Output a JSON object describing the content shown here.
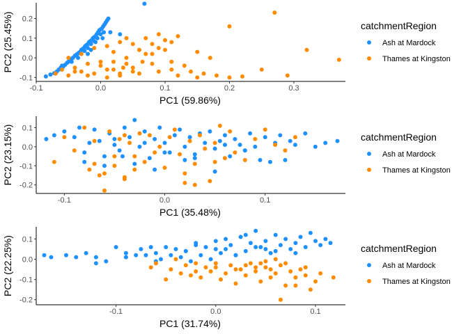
{
  "colors": {
    "ash": "#1e90ff",
    "thames": "#ff8c00",
    "axis": "#000000",
    "tick_text": "#4d4d4d"
  },
  "chart_data": [
    {
      "type": "scatter",
      "title": "",
      "xlabel": "PC1 (59.86%)",
      "ylabel": "PC2 (25.45%)",
      "xlim": [
        -0.1,
        0.38
      ],
      "ylim": [
        -0.12,
        0.28
      ],
      "xticks": [
        -0.1,
        0.0,
        0.1,
        0.2,
        0.3
      ],
      "xtick_labels": [
        "-0.1",
        "0.0",
        "0.1",
        "0.2",
        "0.3"
      ],
      "yticks": [
        -0.1,
        0.0,
        0.1,
        0.2
      ],
      "ytick_labels": [
        "-0.1",
        "0.0",
        "0.1",
        "0.2"
      ],
      "grid": false,
      "legend": {
        "title": "catchmentRegion",
        "position": "right",
        "entries": [
          "Ash at Mardock",
          "Thames at Kingston"
        ]
      },
      "series": [
        {
          "name": "Ash at Mardock",
          "color": "#1e90ff",
          "x": [
            -0.085,
            -0.078,
            -0.072,
            -0.068,
            -0.065,
            -0.062,
            -0.058,
            -0.055,
            -0.052,
            -0.05,
            -0.048,
            -0.045,
            -0.043,
            -0.04,
            -0.038,
            -0.036,
            -0.034,
            -0.032,
            -0.03,
            -0.028,
            -0.026,
            -0.024,
            -0.022,
            -0.02,
            -0.018,
            -0.016,
            -0.014,
            -0.012,
            -0.01,
            -0.008,
            -0.006,
            -0.004,
            -0.002,
            0.0,
            0.002,
            0.004,
            0.006,
            0.008,
            0.01,
            0.012,
            -0.03,
            -0.025,
            -0.02,
            -0.015,
            -0.01,
            -0.005,
            0.0,
            0.005,
            -0.035,
            -0.015,
            0.015,
            0.03,
            0.068,
            -0.06,
            -0.045,
            -0.02,
            -0.008,
            0.003
          ],
          "y": [
            -0.095,
            -0.085,
            -0.078,
            -0.07,
            -0.06,
            -0.05,
            -0.045,
            -0.035,
            -0.025,
            -0.02,
            -0.01,
            -0.005,
            0.0,
            0.01,
            0.015,
            0.02,
            0.025,
            0.03,
            0.04,
            0.045,
            0.05,
            0.06,
            0.065,
            0.07,
            0.08,
            0.085,
            0.09,
            0.1,
            0.105,
            0.11,
            0.12,
            0.13,
            0.14,
            0.145,
            0.15,
            0.16,
            0.17,
            0.18,
            0.19,
            0.2,
            0.02,
            0.035,
            0.05,
            0.07,
            0.085,
            0.1,
            0.12,
            0.13,
            0.0,
            0.04,
            0.13,
            0.12,
            0.275,
            -0.04,
            -0.02,
            0.02,
            0.08,
            0.1
          ]
        },
        {
          "name": "Thames at Kingston",
          "color": "#ff8c00",
          "x": [
            -0.07,
            -0.06,
            -0.05,
            -0.04,
            -0.03,
            -0.02,
            -0.01,
            0.0,
            0.01,
            0.02,
            0.03,
            0.04,
            0.05,
            0.06,
            0.07,
            0.08,
            0.09,
            0.1,
            0.11,
            0.12,
            0.13,
            0.14,
            0.15,
            0.16,
            0.18,
            0.2,
            0.22,
            0.25,
            0.27,
            0.29,
            0.32,
            0.37,
            -0.05,
            -0.03,
            -0.01,
            0.01,
            0.03,
            0.05,
            0.07,
            0.09,
            0.11,
            0.0,
            0.02,
            0.04,
            0.06,
            0.08,
            0.1,
            0.12,
            0.2,
            0.09,
            0.04,
            0.06,
            0.08,
            0.11,
            0.15,
            0.17,
            0.01,
            0.02,
            0.03,
            0.05,
            -0.04,
            -0.02,
            0.035,
            0.065
          ],
          "y": [
            -0.08,
            -0.06,
            -0.09,
            -0.05,
            -0.07,
            -0.03,
            -0.08,
            -0.04,
            -0.06,
            -0.02,
            -0.09,
            0.0,
            -0.05,
            -0.08,
            0.02,
            -0.03,
            -0.07,
            0.04,
            -0.06,
            -0.09,
            -0.04,
            -0.07,
            -0.1,
            -0.08,
            -0.09,
            -0.1,
            -0.095,
            -0.06,
            0.23,
            -0.09,
            0.04,
            -0.01,
            0.0,
            0.02,
            0.05,
            0.06,
            0.08,
            0.07,
            0.1,
            0.05,
            0.08,
            -0.02,
            0.03,
            -0.03,
            0.04,
            0.07,
            0.09,
            0.11,
            0.16,
            0.12,
            0.1,
            0.04,
            0.02,
            -0.02,
            0.03,
            0.0,
            -0.1,
            -0.06,
            -0.08,
            -0.07,
            -0.07,
            -0.09,
            -0.05,
            -0.02
          ]
        }
      ]
    },
    {
      "type": "scatter",
      "title": "",
      "xlabel": "PC1 (35.48%)",
      "ylabel": "PC2 (23.15%)",
      "xlim": [
        -0.128,
        0.18
      ],
      "ylim": [
        -0.245,
        0.16
      ],
      "xticks": [
        -0.1,
        0.0,
        0.1
      ],
      "xtick_labels": [
        "-0.1",
        "0.0",
        "0.1"
      ],
      "yticks": [
        -0.2,
        -0.1,
        0.0,
        0.1
      ],
      "ytick_labels": [
        "-0.2",
        "-0.1",
        "0.0",
        "0.1"
      ],
      "grid": false,
      "legend": {
        "title": "catchmentRegion",
        "position": "right",
        "entries": [
          "Ash at Mardock",
          "Thames at Kingston"
        ]
      },
      "series": [
        {
          "name": "Ash at Mardock",
          "color": "#1e90ff",
          "x": [
            -0.118,
            -0.11,
            -0.1,
            -0.09,
            -0.085,
            -0.08,
            -0.075,
            -0.07,
            -0.065,
            -0.06,
            -0.055,
            -0.05,
            -0.045,
            -0.04,
            -0.035,
            -0.03,
            -0.025,
            -0.02,
            -0.015,
            -0.01,
            -0.005,
            0.0,
            0.005,
            0.01,
            0.015,
            0.02,
            0.025,
            0.03,
            0.035,
            0.04,
            0.045,
            0.05,
            0.055,
            0.06,
            0.065,
            0.07,
            0.075,
            0.08,
            0.085,
            0.09,
            0.095,
            0.1,
            0.105,
            0.11,
            0.115,
            0.12,
            0.125,
            0.13,
            0.14,
            0.15,
            0.16,
            0.172,
            -0.042,
            -0.03,
            -0.01,
            0.02,
            0.05,
            0.08,
            -0.06,
            -0.02,
            0.0,
            0.03,
            0.06,
            -0.08,
            -0.05
          ],
          "y": [
            0.04,
            0.06,
            0.08,
            0.05,
            0.1,
            -0.03,
            0.02,
            0.09,
            0.03,
            -0.05,
            0.07,
            0.01,
            -0.02,
            0.1,
            0.05,
            0.14,
            0.0,
            0.08,
            -0.06,
            0.04,
            0.1,
            0.02,
            -0.03,
            0.06,
            0.09,
            0.0,
            0.05,
            -0.04,
            0.07,
            0.02,
            0.08,
            -0.01,
            0.03,
            0.06,
            -0.05,
            0.04,
            0.01,
            -0.02,
            0.07,
            0.0,
            -0.07,
            0.05,
            -0.08,
            0.02,
            0.06,
            -0.07,
            0.03,
            0.01,
            0.07,
            0.0,
            0.02,
            0.03,
            -0.05,
            -0.09,
            -0.12,
            -0.07,
            -0.13,
            -0.02,
            -0.1,
            0.02,
            -0.03,
            -0.06,
            0.01,
            -0.08,
            0.04
          ]
        },
        {
          "name": "Thames at Kingston",
          "color": "#ff8c00",
          "x": [
            -0.11,
            -0.1,
            -0.09,
            -0.08,
            -0.075,
            -0.07,
            -0.065,
            -0.06,
            -0.055,
            -0.05,
            -0.045,
            -0.04,
            -0.035,
            -0.03,
            -0.025,
            -0.02,
            -0.015,
            -0.01,
            -0.005,
            0.0,
            0.005,
            0.01,
            0.015,
            0.02,
            0.025,
            0.03,
            0.035,
            0.04,
            0.045,
            0.05,
            0.055,
            0.06,
            0.065,
            0.07,
            0.08,
            0.09,
            0.1,
            0.11,
            0.12,
            0.13,
            -0.07,
            -0.06,
            -0.05,
            -0.04,
            -0.03,
            0.02,
            0.03,
            -0.04,
            0.05
          ],
          "y": [
            -0.08,
            0.05,
            -0.02,
            0.1,
            -0.12,
            0.03,
            -0.15,
            -0.23,
            0.08,
            -0.1,
            0.04,
            -0.17,
            0.02,
            -0.05,
            0.07,
            -0.08,
            0.06,
            -0.03,
            0.0,
            -0.11,
            0.05,
            0.09,
            -0.04,
            -0.14,
            0.03,
            -0.09,
            0.06,
            -0.01,
            -0.18,
            0.02,
            0.11,
            -0.06,
            0.08,
            -0.03,
            -0.07,
            0.04,
            0.09,
            0.01,
            -0.02,
            0.05,
            -0.09,
            -0.14,
            -0.05,
            0.06,
            -0.12,
            -0.19,
            -0.2,
            -0.16,
            -0.08
          ]
        }
      ]
    },
    {
      "type": "scatter",
      "title": "",
      "xlabel": "PC1 (31.74%)",
      "ylabel": "PC2 (22.25%)",
      "xlim": [
        -0.18,
        0.13
      ],
      "ylim": [
        -0.225,
        0.16
      ],
      "xticks": [
        -0.1,
        0.0,
        0.1
      ],
      "xtick_labels": [
        "-0.1",
        "0.0",
        "0.1"
      ],
      "yticks": [
        -0.2,
        -0.1,
        0.0,
        0.1
      ],
      "ytick_labels": [
        "-0.2",
        "-0.1",
        "0.0",
        "0.1"
      ],
      "grid": false,
      "legend": {
        "title": "catchmentRegion",
        "position": "right",
        "entries": [
          "Ash at Mardock",
          "Thames at Kingston"
        ]
      },
      "series": [
        {
          "name": "Ash at Mardock",
          "color": "#1e90ff",
          "x": [
            -0.172,
            -0.165,
            -0.15,
            -0.14,
            -0.13,
            -0.12,
            -0.11,
            -0.1,
            -0.09,
            -0.08,
            -0.075,
            -0.07,
            -0.065,
            -0.06,
            -0.055,
            -0.05,
            -0.045,
            -0.04,
            -0.035,
            -0.03,
            -0.025,
            -0.02,
            -0.015,
            -0.01,
            -0.005,
            0.0,
            0.005,
            0.01,
            0.015,
            0.02,
            0.025,
            0.03,
            0.035,
            0.04,
            0.045,
            0.05,
            0.055,
            0.06,
            0.065,
            0.07,
            0.075,
            0.08,
            0.085,
            0.09,
            0.095,
            0.1,
            0.105,
            0.11,
            0.115,
            -0.12,
            -0.09,
            -0.06,
            -0.03,
            0.0,
            0.02,
            0.04,
            0.06,
            0.08,
            -0.02,
            0.01,
            0.03,
            0.05
          ],
          "y": [
            0.02,
            0.01,
            0.02,
            0.01,
            0.03,
            0.01,
            -0.01,
            0.06,
            0.01,
            0.02,
            0.05,
            0.02,
            0.06,
            0.03,
            0.0,
            0.06,
            0.02,
            0.05,
            0.01,
            0.04,
            -0.01,
            0.07,
            0.02,
            0.06,
            0.0,
            0.09,
            0.03,
            0.05,
            0.07,
            0.02,
            0.11,
            0.04,
            0.08,
            0.14,
            0.06,
            0.09,
            0.03,
            0.12,
            0.07,
            0.1,
            0.05,
            0.08,
            0.11,
            0.06,
            0.13,
            0.09,
            0.07,
            0.1,
            0.08,
            -0.02,
            0.03,
            -0.01,
            0.04,
            0.05,
            0.02,
            0.06,
            0.04,
            0.03,
            0.08,
            0.1,
            0.12,
            0.05
          ]
        },
        {
          "name": "Thames at Kingston",
          "color": "#ff8c00",
          "x": [
            -0.065,
            -0.06,
            -0.05,
            -0.045,
            -0.04,
            -0.035,
            -0.03,
            -0.025,
            -0.02,
            -0.015,
            -0.01,
            -0.005,
            0.0,
            0.005,
            0.01,
            0.015,
            0.02,
            0.025,
            0.03,
            0.035,
            0.04,
            0.045,
            0.05,
            0.055,
            0.06,
            0.065,
            0.07,
            0.075,
            0.08,
            0.085,
            0.09,
            0.095,
            0.1,
            0.105,
            0.118,
            0.065,
            0.08,
            0.09,
            0.07,
            0.06,
            0.05,
            0.04,
            -0.02,
            0.0,
            0.02,
            0.03,
            0.045,
            0.055
          ],
          "y": [
            -0.04,
            -0.02,
            -0.1,
            -0.05,
            0.0,
            -0.07,
            -0.03,
            -0.08,
            -0.02,
            -0.09,
            -0.04,
            -0.06,
            -0.02,
            -0.1,
            -0.07,
            -0.03,
            -0.12,
            -0.05,
            -0.08,
            -0.02,
            -0.06,
            -0.11,
            -0.04,
            -0.09,
            -0.07,
            -0.03,
            -0.13,
            -0.06,
            -0.09,
            -0.05,
            -0.08,
            -0.15,
            -0.11,
            -0.07,
            -0.09,
            -0.2,
            -0.13,
            -0.04,
            -0.02,
            0.0,
            -0.01,
            -0.04,
            -0.06,
            -0.04,
            -0.05,
            -0.03,
            -0.02,
            -0.05
          ]
        }
      ]
    }
  ]
}
